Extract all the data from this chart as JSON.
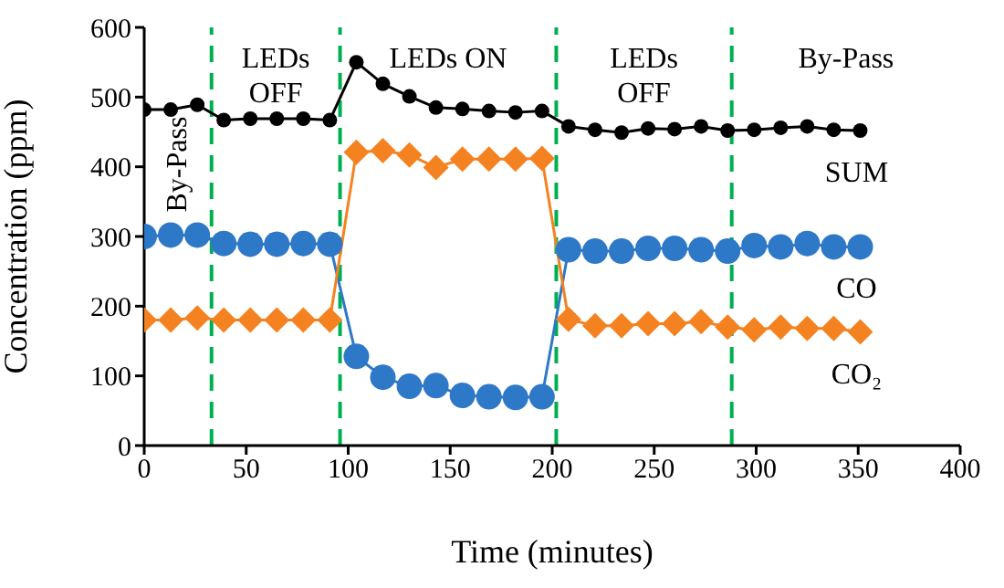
{
  "chart_data": {
    "type": "line",
    "xlabel": "Time (minutes)",
    "ylabel": "Concentration (ppm)",
    "x": [
      0,
      13,
      26,
      39,
      52,
      65,
      78,
      91,
      104,
      117,
      130,
      143,
      156,
      169,
      182,
      195,
      208,
      221,
      234,
      247,
      260,
      273,
      286,
      299,
      312,
      325,
      338,
      351
    ],
    "series": [
      {
        "name": "SUM",
        "color": "#000000",
        "marker": "circle",
        "values": [
          482,
          482,
          489,
          467,
          469,
          469,
          469,
          467,
          550,
          519,
          501,
          485,
          483,
          480,
          478,
          480,
          458,
          453,
          449,
          455,
          454,
          458,
          452,
          453,
          456,
          458,
          453,
          452
        ]
      },
      {
        "name": "CO",
        "color": "#2e78c8",
        "marker": "circle",
        "values": [
          300,
          302,
          302,
          290,
          289,
          289,
          290,
          289,
          128,
          98,
          85,
          86,
          72,
          70,
          69,
          70,
          281,
          279,
          279,
          283,
          283,
          281,
          279,
          287,
          285,
          290,
          285,
          285
        ]
      },
      {
        "name": "CO₂",
        "color": "#f58220",
        "marker": "diamond",
        "values": [
          180,
          180,
          183,
          180,
          180,
          180,
          180,
          180,
          421,
          423,
          417,
          399,
          411,
          411,
          411,
          412,
          181,
          172,
          172,
          175,
          175,
          178,
          170,
          166,
          170,
          168,
          168,
          163
        ]
      }
    ],
    "xlim": [
      0,
      400
    ],
    "xticks": [
      0,
      50,
      100,
      150,
      200,
      250,
      300,
      350,
      400
    ],
    "ylim": [
      0,
      600
    ],
    "yticks": [
      0,
      100,
      200,
      300,
      400,
      500,
      600
    ],
    "ref_lines": [
      {
        "axis": "x",
        "value": 33,
        "color": "#00b050",
        "line_style": "dashed"
      },
      {
        "axis": "x",
        "value": 96,
        "color": "#00b050",
        "line_style": "dashed"
      },
      {
        "axis": "x",
        "value": 202,
        "color": "#00b050",
        "line_style": "dashed"
      },
      {
        "axis": "x",
        "value": 288,
        "color": "#00b050",
        "line_style": "dashed"
      }
    ],
    "annotations": [
      "By-Pass",
      "LEDs OFF",
      "LEDs ON",
      "LEDs OFF",
      "By-Pass"
    ],
    "line_style": "solid"
  }
}
